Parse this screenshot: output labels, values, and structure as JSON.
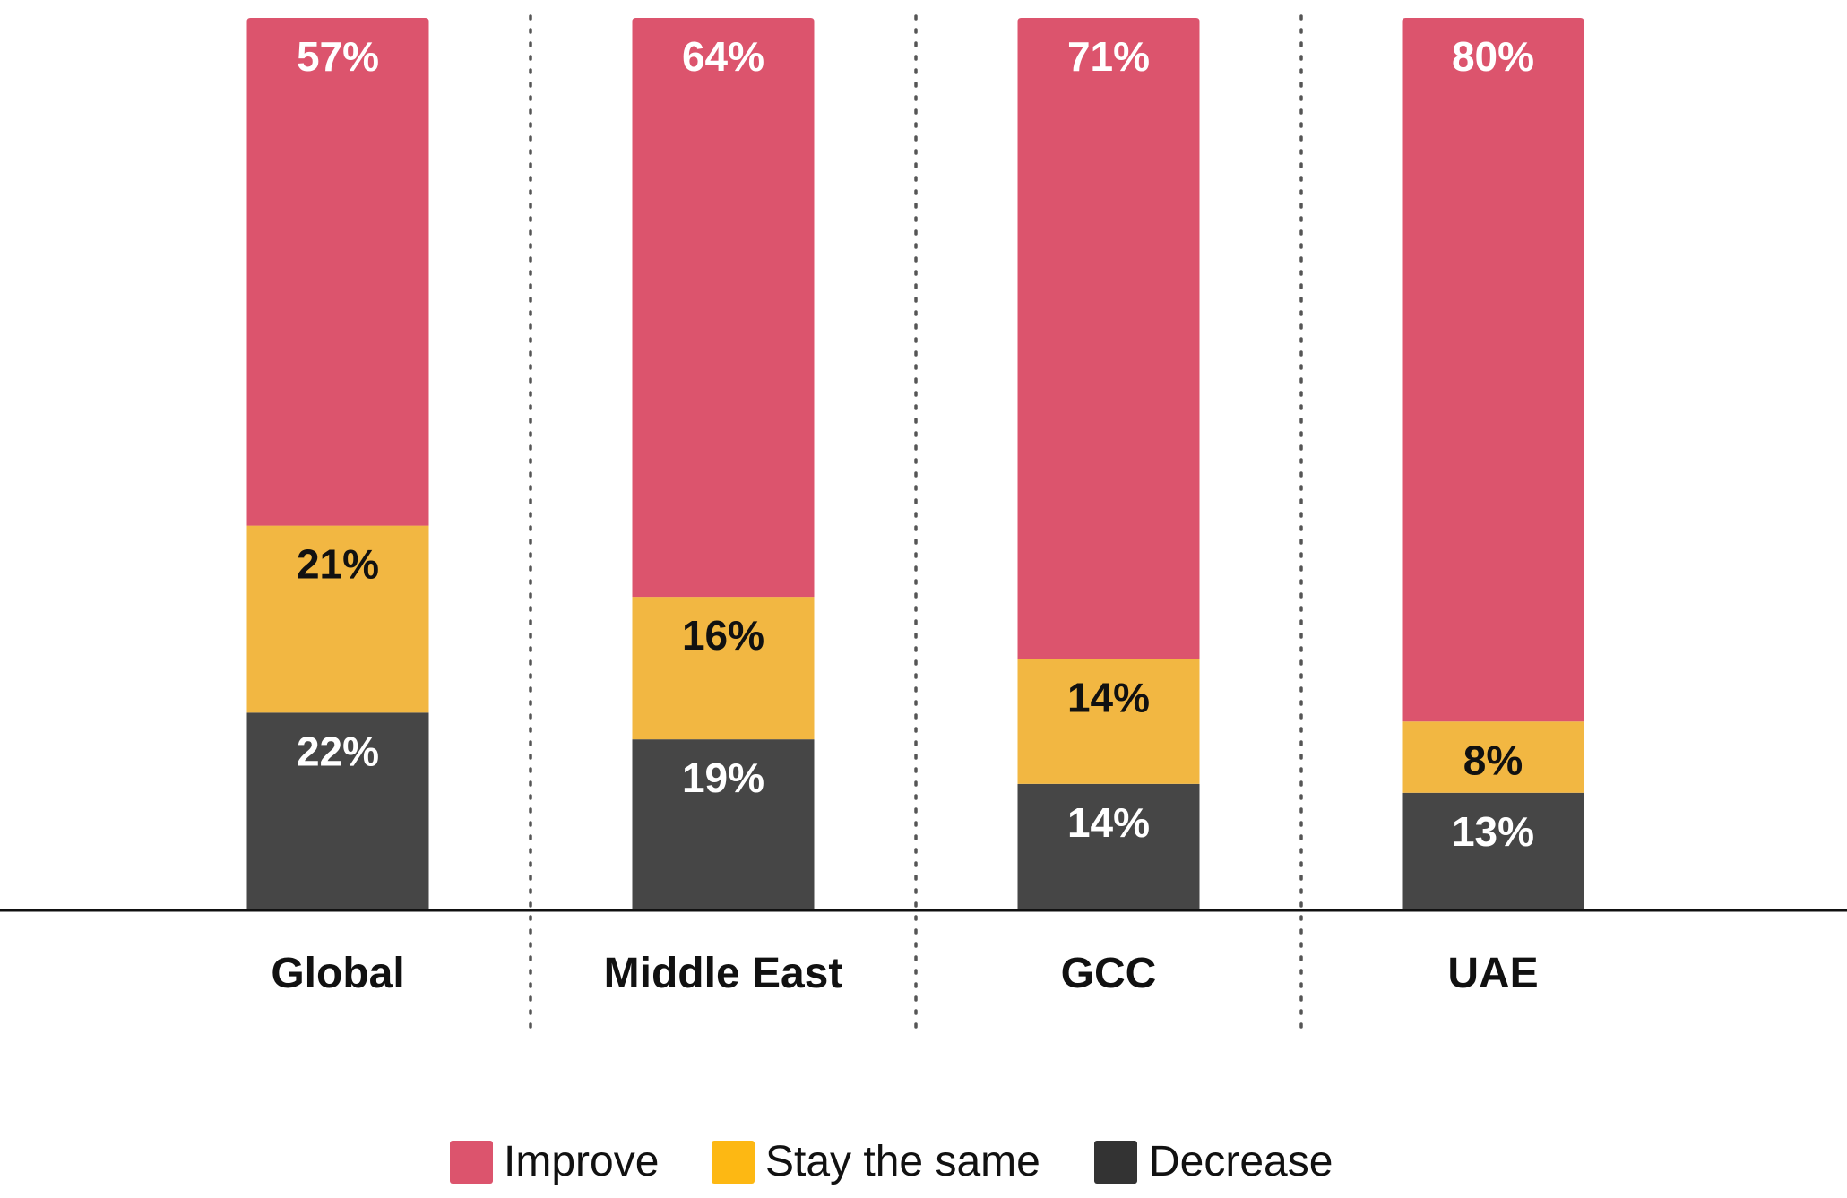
{
  "chart_data": {
    "type": "bar",
    "stacked": true,
    "categories": [
      "Global",
      "Middle East",
      "GCC",
      "UAE"
    ],
    "series": [
      {
        "name": "Decrease",
        "values": [
          22,
          19,
          14,
          13
        ],
        "color": "#464646",
        "label_color": "#ffffff",
        "value_labels": [
          "22%",
          "19%",
          "14%",
          "13%"
        ]
      },
      {
        "name": "Stay the same",
        "values": [
          21,
          16,
          14,
          8
        ],
        "color": "#f2b742",
        "label_color": "#111111",
        "value_labels": [
          "21%",
          "16%",
          "14%",
          "8%"
        ]
      },
      {
        "name": "Improve",
        "values": [
          57,
          64,
          71,
          80
        ],
        "color": "#dc546d",
        "label_color": "#ffffff",
        "value_labels": [
          "57%",
          "64%",
          "71%",
          "80%"
        ]
      }
    ],
    "ylim": [
      0,
      100
    ],
    "grid": false,
    "category_separators": "dotted",
    "legend": {
      "position": "bottom-center",
      "order": [
        "Improve",
        "Stay the same",
        "Decrease"
      ],
      "swatch_colors": {
        "Improve": "#dc546d",
        "Stay the same": "#fdb813",
        "Decrease": "#333333"
      }
    },
    "title": "",
    "xlabel": "",
    "ylabel": ""
  }
}
